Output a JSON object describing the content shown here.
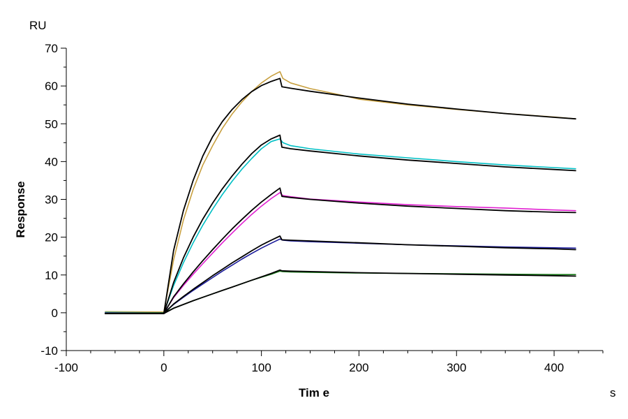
{
  "chart_data": {
    "type": "line",
    "xlabel": "Tim e",
    "ylabel": "Response",
    "x_unit": "s",
    "y_unit": "RU",
    "xlim": [
      -100,
      450
    ],
    "ylim": [
      -10,
      70
    ],
    "x_ticks": [
      -100,
      0,
      100,
      200,
      300,
      400
    ],
    "y_ticks": [
      -10,
      0,
      10,
      20,
      30,
      40,
      50,
      60,
      70
    ],
    "grid": false,
    "series": [
      {
        "color": "#c8a040",
        "x": [
          -60,
          0,
          10,
          20,
          30,
          40,
          50,
          60,
          70,
          80,
          90,
          100,
          110,
          119,
          122,
          130,
          150,
          180,
          200,
          250,
          300,
          350,
          400,
          422
        ],
        "y": [
          0.3,
          0.2,
          14.0,
          24.5,
          32.6,
          39.1,
          44.2,
          48.8,
          52.6,
          55.8,
          58.5,
          60.8,
          62.6,
          63.8,
          62.0,
          60.8,
          59.3,
          57.7,
          56.5,
          55.0,
          53.8,
          52.7,
          51.8,
          51.3
        ]
      },
      {
        "color": "#00bfc4",
        "x": [
          -60,
          0,
          10,
          20,
          30,
          40,
          50,
          60,
          70,
          80,
          90,
          100,
          110,
          119,
          122,
          130,
          150,
          200,
          250,
          300,
          350,
          400,
          422
        ],
        "y": [
          0.1,
          0.0,
          7.2,
          13.2,
          18.5,
          23.2,
          27.4,
          31.3,
          34.8,
          38.0,
          40.8,
          43.4,
          45.3,
          46.0,
          45.0,
          44.2,
          43.4,
          42.0,
          41.0,
          40.0,
          39.1,
          38.4,
          38.1
        ]
      },
      {
        "color": "#e020d0",
        "x": [
          -60,
          0,
          10,
          20,
          30,
          40,
          50,
          60,
          70,
          80,
          90,
          100,
          110,
          119,
          122,
          130,
          150,
          200,
          250,
          300,
          350,
          400,
          422
        ],
        "y": [
          0.0,
          0.0,
          4.0,
          7.2,
          10.2,
          13.0,
          15.8,
          18.5,
          21.1,
          23.6,
          26.0,
          28.2,
          30.2,
          31.8,
          31.0,
          30.7,
          30.1,
          29.3,
          28.6,
          28.1,
          27.7,
          27.2,
          27.0
        ]
      },
      {
        "color": "#1a1a9a",
        "x": [
          -60,
          0,
          10,
          20,
          30,
          40,
          50,
          60,
          70,
          80,
          90,
          100,
          110,
          119,
          122,
          130,
          150,
          200,
          250,
          300,
          350,
          400,
          422
        ],
        "y": [
          0.0,
          0.0,
          2.2,
          4.1,
          5.9,
          7.6,
          9.3,
          11.0,
          12.6,
          14.2,
          15.7,
          17.1,
          18.4,
          19.5,
          19.2,
          19.0,
          18.8,
          18.4,
          18.0,
          17.7,
          17.4,
          17.2,
          17.1
        ]
      },
      {
        "color": "#1a7a1a",
        "x": [
          -60,
          0,
          10,
          20,
          30,
          40,
          50,
          60,
          70,
          80,
          90,
          100,
          110,
          119,
          122,
          130,
          150,
          200,
          250,
          300,
          350,
          400,
          422
        ],
        "y": [
          -0.1,
          0.0,
          1.2,
          2.2,
          3.2,
          4.1,
          5.0,
          5.9,
          6.8,
          7.7,
          8.6,
          9.4,
          10.2,
          11.0,
          10.9,
          10.8,
          10.7,
          10.5,
          10.4,
          10.3,
          10.2,
          10.1,
          10.1
        ]
      },
      {
        "color": "#000000",
        "x": [
          -60,
          0,
          10,
          20,
          30,
          40,
          50,
          60,
          70,
          80,
          90,
          100,
          110,
          119,
          121,
          130,
          150,
          200,
          250,
          300,
          350,
          400,
          422
        ],
        "y": [
          -0.2,
          -0.2,
          16.5,
          27.0,
          35.0,
          41.5,
          46.6,
          50.6,
          53.8,
          56.4,
          58.5,
          60.1,
          61.2,
          62.0,
          59.8,
          59.4,
          58.6,
          56.8,
          55.2,
          53.9,
          52.7,
          51.7,
          51.3
        ]
      },
      {
        "color": "#000000",
        "x": [
          -60,
          0,
          10,
          20,
          30,
          40,
          50,
          60,
          70,
          80,
          90,
          100,
          110,
          119,
          121,
          130,
          150,
          200,
          250,
          300,
          350,
          400,
          422
        ],
        "y": [
          -0.2,
          -0.2,
          8.0,
          14.5,
          20.0,
          24.8,
          29.0,
          32.8,
          36.2,
          39.3,
          42.1,
          44.4,
          46.0,
          47.0,
          43.8,
          43.4,
          42.8,
          41.5,
          40.4,
          39.5,
          38.6,
          37.9,
          37.6
        ]
      },
      {
        "color": "#000000",
        "x": [
          -60,
          0,
          10,
          20,
          30,
          40,
          50,
          60,
          70,
          80,
          90,
          100,
          110,
          119,
          121,
          130,
          150,
          200,
          250,
          300,
          350,
          400,
          422
        ],
        "y": [
          -0.2,
          -0.2,
          4.2,
          7.6,
          10.8,
          13.8,
          16.7,
          19.5,
          22.2,
          24.7,
          27.1,
          29.3,
          31.3,
          33.0,
          30.8,
          30.5,
          30.0,
          29.0,
          28.2,
          27.6,
          27.0,
          26.6,
          26.5
        ]
      },
      {
        "color": "#000000",
        "x": [
          -60,
          0,
          10,
          20,
          30,
          40,
          50,
          60,
          70,
          80,
          90,
          100,
          110,
          119,
          121,
          130,
          150,
          200,
          250,
          300,
          350,
          400,
          422
        ],
        "y": [
          -0.2,
          -0.2,
          2.3,
          4.3,
          6.2,
          8.0,
          9.8,
          11.5,
          13.2,
          14.8,
          16.4,
          17.9,
          19.2,
          20.3,
          19.3,
          19.2,
          19.0,
          18.5,
          18.0,
          17.6,
          17.2,
          16.9,
          16.7
        ]
      },
      {
        "color": "#000000",
        "x": [
          -60,
          0,
          10,
          20,
          30,
          40,
          50,
          60,
          70,
          80,
          90,
          100,
          110,
          119,
          121,
          130,
          150,
          200,
          250,
          300,
          350,
          400,
          422
        ],
        "y": [
          -0.2,
          -0.2,
          1.2,
          2.2,
          3.2,
          4.1,
          5.0,
          5.9,
          6.8,
          7.7,
          8.6,
          9.5,
          10.4,
          11.3,
          11.1,
          11.0,
          10.9,
          10.6,
          10.4,
          10.2,
          10.0,
          9.8,
          9.7
        ]
      }
    ]
  }
}
